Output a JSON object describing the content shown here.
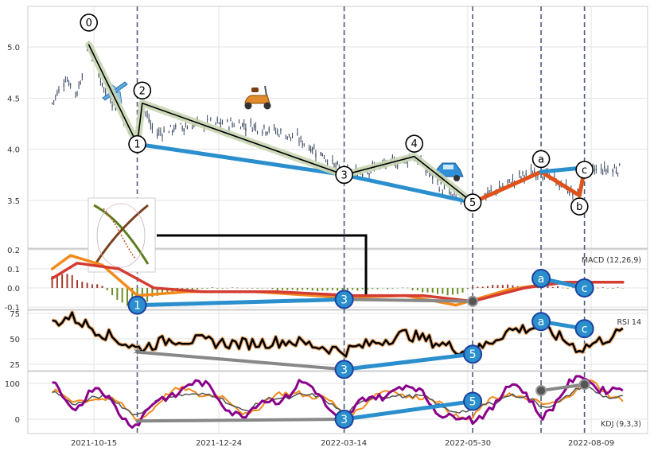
{
  "chart_data": [
    {
      "type": "candlestick",
      "panel": "price",
      "x_ticks": [
        "2021-10-15",
        "2021-12-24",
        "2022-03-14",
        "2022-05-30",
        "2022-08-09"
      ],
      "y_ticks": [
        "5.0",
        "4.5",
        "4.0",
        "3.5"
      ],
      "ylim": [
        3.1,
        5.4
      ],
      "grid": true,
      "price_path": [
        {
          "x": "2021-09-20",
          "y": 4.45
        },
        {
          "x": "2021-09-28",
          "y": 4.7
        },
        {
          "x": "2021-10-05",
          "y": 4.55
        },
        {
          "x": "2021-10-12",
          "y": 5.02
        },
        {
          "x": "2021-10-22",
          "y": 4.55
        },
        {
          "x": "2021-10-30",
          "y": 4.4
        },
        {
          "x": "2021-11-06",
          "y": 4.15
        },
        {
          "x": "2021-11-10",
          "y": 4.05
        },
        {
          "x": "2021-11-13",
          "y": 4.45
        },
        {
          "x": "2021-11-20",
          "y": 4.15
        },
        {
          "x": "2021-12-01",
          "y": 4.2
        },
        {
          "x": "2021-12-20",
          "y": 4.25
        },
        {
          "x": "2022-01-10",
          "y": 4.25
        },
        {
          "x": "2022-01-28",
          "y": 4.2
        },
        {
          "x": "2022-02-14",
          "y": 4.1
        },
        {
          "x": "2022-03-01",
          "y": 3.95
        },
        {
          "x": "2022-03-14",
          "y": 3.75
        },
        {
          "x": "2022-03-28",
          "y": 3.8
        },
        {
          "x": "2022-04-15",
          "y": 3.88
        },
        {
          "x": "2022-04-25",
          "y": 3.93
        },
        {
          "x": "2022-05-05",
          "y": 3.75
        },
        {
          "x": "2022-05-15",
          "y": 3.55
        },
        {
          "x": "2022-05-30",
          "y": 3.48
        },
        {
          "x": "2022-06-15",
          "y": 3.62
        },
        {
          "x": "2022-06-30",
          "y": 3.75
        },
        {
          "x": "2022-07-10",
          "y": 3.78
        },
        {
          "x": "2022-07-25",
          "y": 3.62
        },
        {
          "x": "2022-08-02",
          "y": 3.55
        },
        {
          "x": "2022-08-05",
          "y": 3.8
        },
        {
          "x": "2022-08-20",
          "y": 3.8
        },
        {
          "x": "2022-08-28",
          "y": 3.82
        }
      ],
      "wave_labels": [
        {
          "label": "0",
          "x": "2021-10-12",
          "y": 5.02
        },
        {
          "label": "1",
          "x": "2021-11-10",
          "y": 4.05
        },
        {
          "label": "2",
          "x": "2021-11-13",
          "y": 4.45
        },
        {
          "label": "3",
          "x": "2022-03-14",
          "y": 3.75
        },
        {
          "label": "4",
          "x": "2022-04-25",
          "y": 3.93
        },
        {
          "label": "5",
          "x": "2022-05-30",
          "y": 3.48
        },
        {
          "label": "a",
          "x": "2022-07-10",
          "y": 3.78
        },
        {
          "label": "b",
          "x": "2022-08-02",
          "y": 3.55
        },
        {
          "label": "c",
          "x": "2022-08-05",
          "y": 3.8
        }
      ],
      "impulse_line": [
        {
          "x": "2021-10-12",
          "y": 5.02
        },
        {
          "x": "2021-11-10",
          "y": 4.05
        },
        {
          "x": "2021-11-13",
          "y": 4.45
        },
        {
          "x": "2022-03-14",
          "y": 3.75
        },
        {
          "x": "2022-04-25",
          "y": 3.93
        },
        {
          "x": "2022-05-30",
          "y": 3.48
        }
      ],
      "trend_line_blue": [
        {
          "x": "2021-11-10",
          "y": 4.05
        },
        {
          "x": "2022-03-14",
          "y": 3.75
        },
        {
          "x": "2022-05-30",
          "y": 3.48
        }
      ],
      "corrective_line_red": [
        {
          "x": "2022-05-30",
          "y": 3.48
        },
        {
          "x": "2022-07-10",
          "y": 3.78
        },
        {
          "x": "2022-08-02",
          "y": 3.55
        },
        {
          "x": "2022-08-05",
          "y": 3.8
        }
      ],
      "ac_line_blue": [
        {
          "x": "2022-07-10",
          "y": 3.78
        },
        {
          "x": "2022-08-05",
          "y": 3.82
        }
      ],
      "vertical_markers": [
        "2021-11-10",
        "2022-03-14",
        "2022-05-30",
        "2022-07-10",
        "2022-08-05"
      ],
      "colors": {
        "up": "#35455d",
        "impulse": "#000000",
        "highlight": "#c9d6b4",
        "trend": "#2b8fce",
        "corrective": "#e0521a"
      }
    },
    {
      "type": "line",
      "panel": "macd",
      "label": "MACD (12,26,9)",
      "y_ticks": [
        "0.2",
        "0.1",
        "0.0",
        "-0.1"
      ],
      "ylim": [
        -0.11,
        0.2
      ],
      "series": [
        {
          "values_desc": "macd line",
          "color": "#f28a1c",
          "points": [
            {
              "x": "2021-09-20",
              "y": 0.1
            },
            {
              "x": "2021-10-01",
              "y": 0.17
            },
            {
              "x": "2021-10-20",
              "y": 0.12
            },
            {
              "x": "2021-11-10",
              "y": -0.04
            },
            {
              "x": "2021-12-10",
              "y": -0.02
            },
            {
              "x": "2022-01-20",
              "y": -0.02
            },
            {
              "x": "2022-03-14",
              "y": -0.05
            },
            {
              "x": "2022-04-20",
              "y": -0.04
            },
            {
              "x": "2022-05-20",
              "y": -0.09
            },
            {
              "x": "2022-06-20",
              "y": -0.01
            },
            {
              "x": "2022-07-20",
              "y": 0.03
            },
            {
              "x": "2022-08-28",
              "y": 0.03
            }
          ]
        },
        {
          "values_desc": "signal line",
          "color": "#d43c32",
          "points": [
            {
              "x": "2021-09-20",
              "y": 0.05
            },
            {
              "x": "2021-10-05",
              "y": 0.13
            },
            {
              "x": "2021-10-30",
              "y": 0.1
            },
            {
              "x": "2021-11-20",
              "y": 0.0
            },
            {
              "x": "2021-12-20",
              "y": -0.02
            },
            {
              "x": "2022-02-01",
              "y": -0.02
            },
            {
              "x": "2022-03-20",
              "y": -0.04
            },
            {
              "x": "2022-04-30",
              "y": -0.04
            },
            {
              "x": "2022-05-30",
              "y": -0.07
            },
            {
              "x": "2022-06-30",
              "y": 0.0
            },
            {
              "x": "2022-07-25",
              "y": 0.03
            },
            {
              "x": "2022-08-28",
              "y": 0.03
            }
          ]
        }
      ],
      "wave_points": [
        {
          "label": "1",
          "x": "2021-11-10",
          "y": -0.09
        },
        {
          "label": "3",
          "x": "2022-03-14",
          "y": -0.06
        },
        {
          "label": "a",
          "x": "2022-07-10",
          "y": 0.05
        },
        {
          "label": "c",
          "x": "2022-08-05",
          "y": 0.0
        }
      ],
      "gray_marker": {
        "x": "2022-05-30",
        "y": -0.07
      }
    },
    {
      "type": "line",
      "panel": "rsi",
      "label": "RSI 14",
      "y_ticks": [
        "75",
        "50",
        "25"
      ],
      "ylim": [
        15,
        78
      ],
      "series": [
        {
          "name": "",
          "color": "#000000",
          "points": [
            {
              "x": "2021-09-20",
              "y": 65
            },
            {
              "x": "2021-10-01",
              "y": 72
            },
            {
              "x": "2021-10-15",
              "y": 60
            },
            {
              "x": "2021-11-10",
              "y": 40
            },
            {
              "x": "2021-12-01",
              "y": 50
            },
            {
              "x": "2022-01-10",
              "y": 45
            },
            {
              "x": "2022-02-10",
              "y": 48
            },
            {
              "x": "2022-03-14",
              "y": 38
            },
            {
              "x": "2022-04-20",
              "y": 55
            },
            {
              "x": "2022-05-30",
              "y": 36
            },
            {
              "x": "2022-06-20",
              "y": 58
            },
            {
              "x": "2022-07-10",
              "y": 62
            },
            {
              "x": "2022-08-02",
              "y": 40
            },
            {
              "x": "2022-08-28",
              "y": 57
            }
          ]
        }
      ],
      "wave_points": [
        {
          "label": "3",
          "x": "2022-03-14",
          "y": 20
        },
        {
          "label": "5",
          "x": "2022-05-30",
          "y": 35
        },
        {
          "label": "a",
          "x": "2022-07-10",
          "y": 67
        },
        {
          "label": "c",
          "x": "2022-08-05",
          "y": 60
        }
      ],
      "gray_star": {
        "x": "2021-11-10",
        "y": 37
      }
    },
    {
      "type": "line",
      "panel": "kdj",
      "label": "KDJ (9,3,3)",
      "y_ticks": [
        "100",
        "0"
      ],
      "ylim": [
        -40,
        125
      ],
      "series": [
        {
          "name": "",
          "color": "#8b008b",
          "points": [
            {
              "x": "2021-09-20",
              "y": 90
            },
            {
              "x": "2021-10-01",
              "y": 40
            },
            {
              "x": "2021-10-15",
              "y": 80
            },
            {
              "x": "2021-11-10",
              "y": -10
            },
            {
              "x": "2021-12-10",
              "y": 110
            },
            {
              "x": "2022-01-15",
              "y": 10
            },
            {
              "x": "2022-02-15",
              "y": 100
            },
            {
              "x": "2022-03-14",
              "y": 5
            },
            {
              "x": "2022-04-15",
              "y": 100
            },
            {
              "x": "2022-05-30",
              "y": -20
            },
            {
              "x": "2022-06-20",
              "y": 100
            },
            {
              "x": "2022-07-10",
              "y": 20
            },
            {
              "x": "2022-08-05",
              "y": 120
            },
            {
              "x": "2022-08-28",
              "y": 70
            }
          ]
        }
      ],
      "wave_points": [
        {
          "label": "3",
          "x": "2022-03-14",
          "y": 0
        },
        {
          "label": "5",
          "x": "2022-05-30",
          "y": 50
        }
      ],
      "gray_markers": [
        {
          "x": "2022-07-10",
          "y": 80
        },
        {
          "x": "2022-08-05",
          "y": 97
        }
      ]
    }
  ]
}
